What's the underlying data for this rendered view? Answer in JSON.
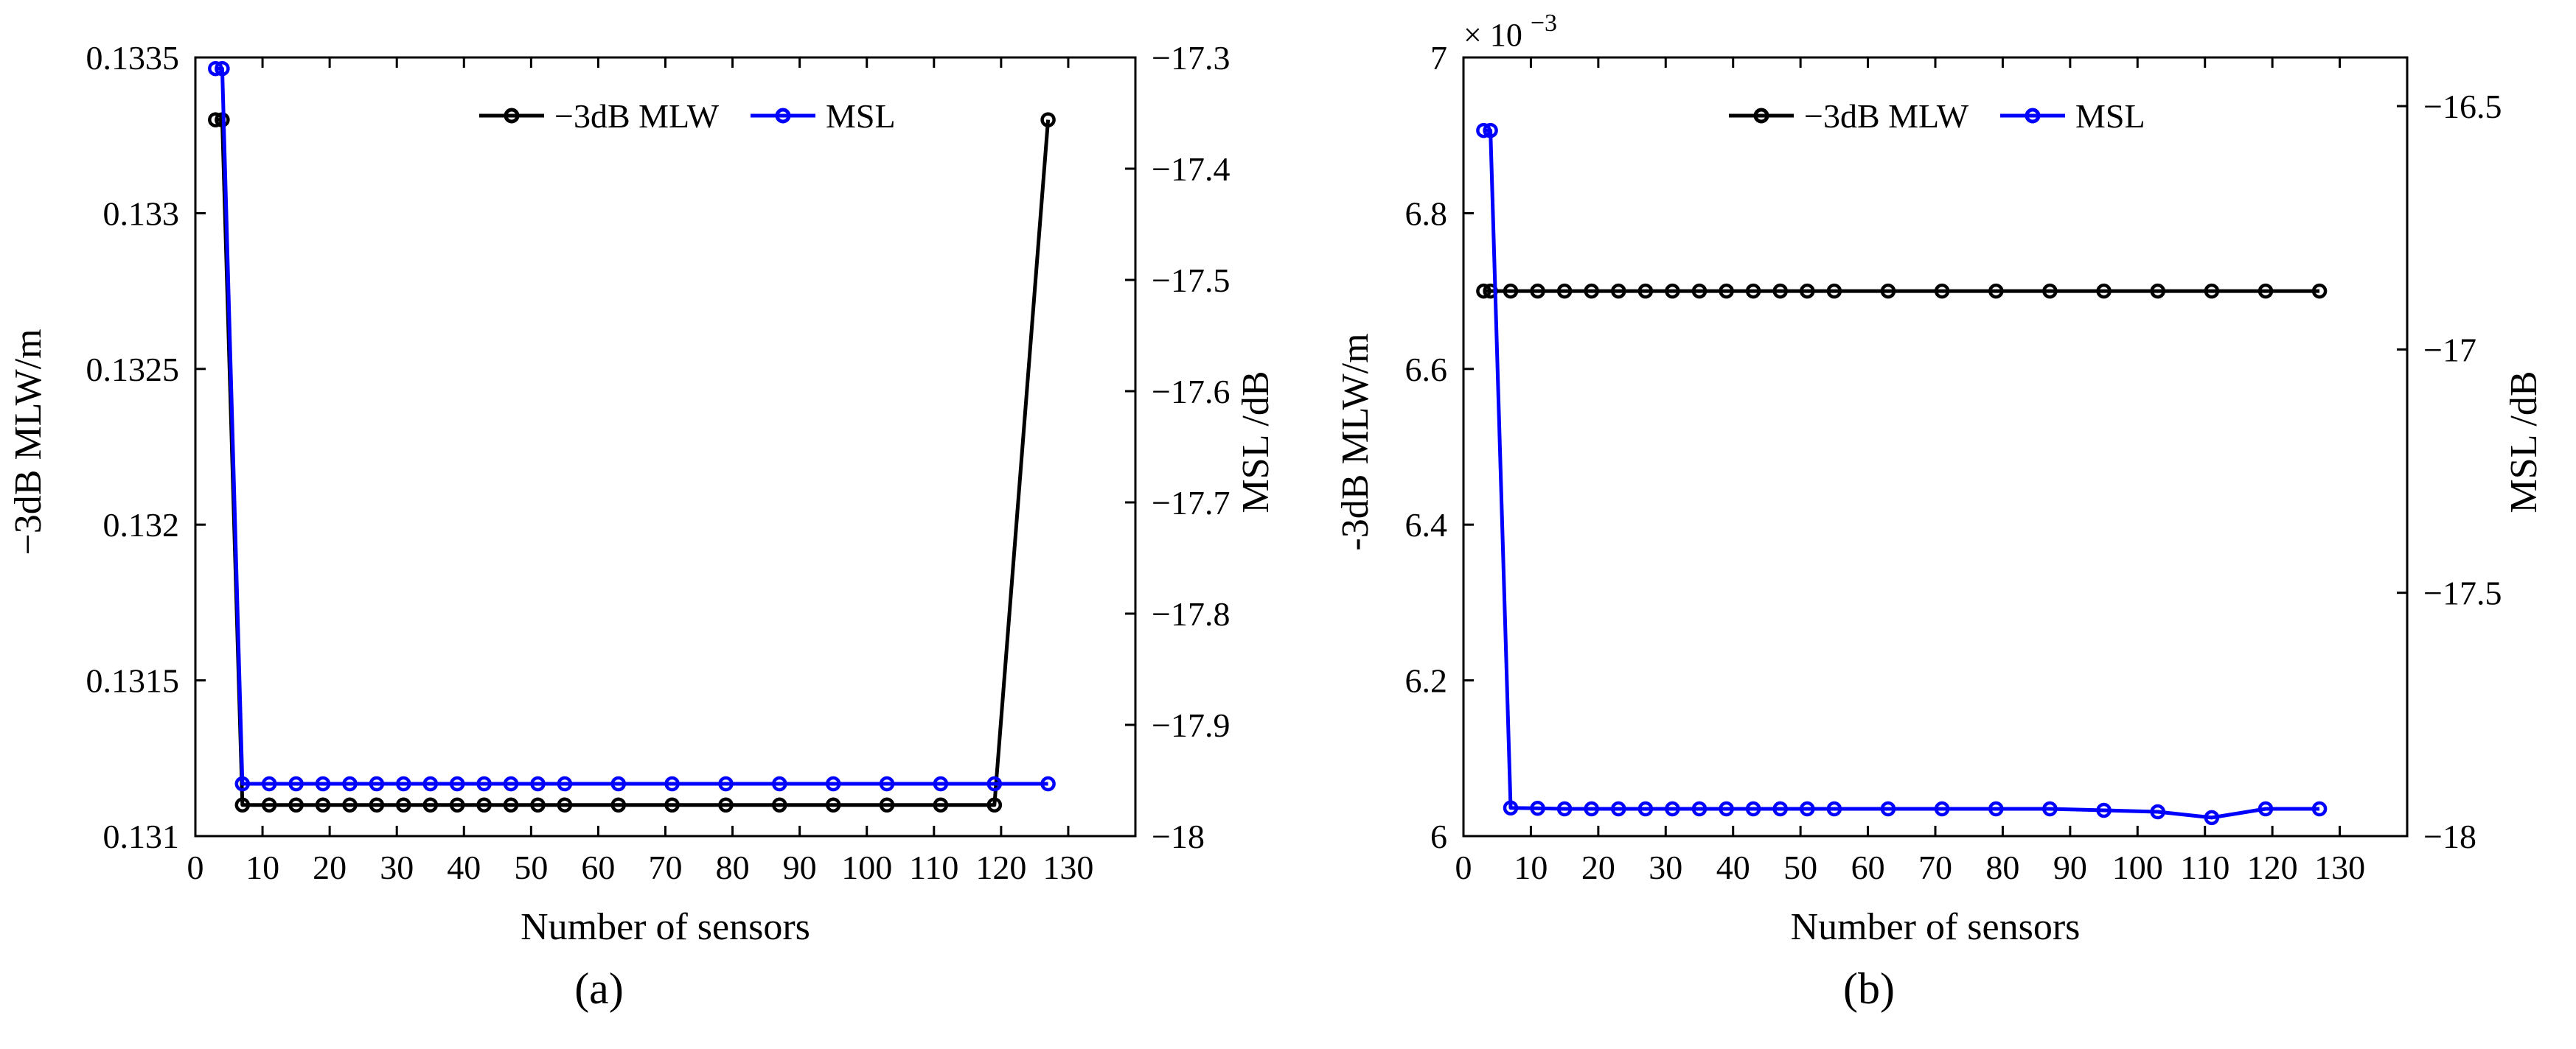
{
  "chart_data": [
    {
      "type": "line",
      "panel_label": "(a)",
      "xlabel": "Number of sensors",
      "ylabel_left": "−3dB MLW/m",
      "ylabel_right": "MSL /dB",
      "xlim": [
        0,
        140
      ],
      "xticks": [
        0,
        10,
        20,
        30,
        40,
        50,
        60,
        70,
        80,
        90,
        100,
        110,
        120,
        130
      ],
      "ylim_left": [
        0.131,
        0.1335
      ],
      "yticks_left": [
        "0.131",
        "0.1315",
        "0.132",
        "0.1325",
        "0.133",
        "0.1335"
      ],
      "ylim_right": [
        -18,
        -17.3
      ],
      "yticks_right": [
        "−18",
        "−17.9",
        "−17.8",
        "−17.7",
        "−17.6",
        "−17.5",
        "−17.4",
        "−17.3"
      ],
      "grid": false,
      "legend": "top-center",
      "series": [
        {
          "name": "−3dB MLW",
          "axis": "left",
          "color": "#000000",
          "x": [
            3,
            4,
            7,
            11,
            15,
            19,
            23,
            27,
            31,
            35,
            39,
            43,
            47,
            51,
            55,
            63,
            71,
            79,
            87,
            95,
            103,
            111,
            119,
            127
          ],
          "y": [
            0.1333,
            0.1333,
            0.1311,
            0.1311,
            0.1311,
            0.1311,
            0.1311,
            0.1311,
            0.1311,
            0.1311,
            0.1311,
            0.1311,
            0.1311,
            0.1311,
            0.1311,
            0.1311,
            0.1311,
            0.1311,
            0.1311,
            0.1311,
            0.1311,
            0.1311,
            0.1311,
            0.1333
          ]
        },
        {
          "name": "MSL",
          "axis": "right",
          "color": "#0000ff",
          "x": [
            3,
            4,
            7,
            11,
            15,
            19,
            23,
            27,
            31,
            35,
            39,
            43,
            47,
            51,
            55,
            63,
            71,
            79,
            87,
            95,
            103,
            111,
            119,
            127
          ],
          "y": [
            -17.31,
            -17.31,
            -17.953,
            -17.953,
            -17.953,
            -17.953,
            -17.953,
            -17.953,
            -17.953,
            -17.953,
            -17.953,
            -17.953,
            -17.953,
            -17.953,
            -17.953,
            -17.953,
            -17.953,
            -17.953,
            -17.953,
            -17.953,
            -17.953,
            -17.953,
            -17.953,
            -17.953
          ]
        }
      ]
    },
    {
      "type": "line",
      "panel_label": "(b)",
      "xlabel": "Number of sensors",
      "ylabel_left": "-3dB MLW/m",
      "ylabel_right": "MSL /dB",
      "exponent_label": "× 10",
      "exponent_power": "−3",
      "xlim": [
        0,
        140
      ],
      "xticks": [
        0,
        10,
        20,
        30,
        40,
        50,
        60,
        70,
        80,
        90,
        100,
        110,
        120,
        130
      ],
      "ylim_left": [
        6.0,
        7.0
      ],
      "yticks_left": [
        "6",
        "6.2",
        "6.4",
        "6.6",
        "6.8",
        "7"
      ],
      "ylim_right": [
        -18,
        -16.4
      ],
      "yticks_right": [
        "−18",
        "−17.5",
        "−17",
        "−16.5"
      ],
      "grid": false,
      "legend": "top-center",
      "series": [
        {
          "name": "−3dB MLW",
          "axis": "left",
          "color": "#000000",
          "x": [
            3,
            4,
            7,
            11,
            15,
            19,
            23,
            27,
            31,
            35,
            39,
            43,
            47,
            51,
            55,
            63,
            71,
            79,
            87,
            95,
            103,
            111,
            119,
            127
          ],
          "y": [
            6.7,
            6.7,
            6.7,
            6.7,
            6.7,
            6.7,
            6.7,
            6.7,
            6.7,
            6.7,
            6.7,
            6.7,
            6.7,
            6.7,
            6.7,
            6.7,
            6.7,
            6.7,
            6.7,
            6.7,
            6.7,
            6.7,
            6.7,
            6.7
          ]
        },
        {
          "name": "MSL",
          "axis": "right",
          "color": "#0000ff",
          "x": [
            3,
            4,
            7,
            11,
            15,
            19,
            23,
            27,
            31,
            35,
            39,
            43,
            47,
            51,
            55,
            63,
            71,
            79,
            87,
            95,
            103,
            111,
            119,
            127
          ],
          "y": [
            -16.55,
            -16.55,
            -17.942,
            -17.943,
            -17.944,
            -17.944,
            -17.944,
            -17.944,
            -17.944,
            -17.944,
            -17.944,
            -17.944,
            -17.944,
            -17.944,
            -17.944,
            -17.944,
            -17.944,
            -17.944,
            -17.944,
            -17.947,
            -17.95,
            -17.962,
            -17.944,
            -17.944
          ]
        }
      ]
    }
  ]
}
